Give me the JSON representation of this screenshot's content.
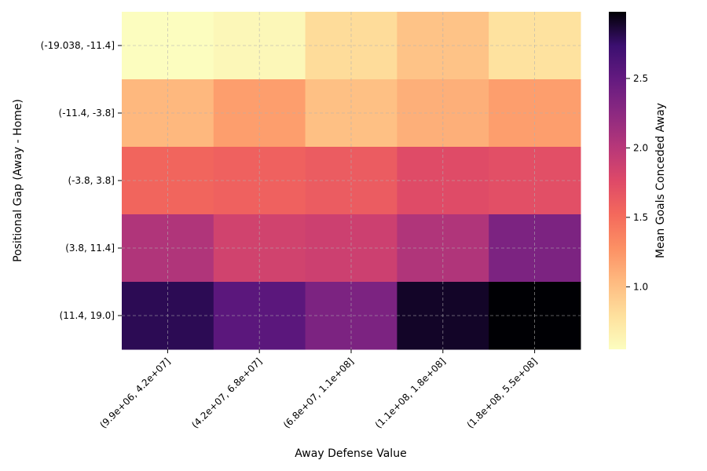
{
  "chart_data": {
    "type": "heatmap",
    "title": "",
    "xlabel": "Away Defense Value",
    "ylabel": "Positional Gap (Away - Home)",
    "x_categories": [
      "(9.9e+06, 4.2e+07]",
      "(4.2e+07, 6.8e+07]",
      "(6.8e+07, 1.1e+08]",
      "(1.1e+08, 1.8e+08]",
      "(1.8e+08, 5.5e+08]"
    ],
    "y_categories": [
      "(-19.038, -11.4]",
      "(-11.4, -3.8]",
      "(-3.8, 3.8]",
      "(3.8, 11.4]",
      "(11.4, 19.0]"
    ],
    "values": [
      [
        0.55,
        0.6,
        0.82,
        0.98,
        0.78
      ],
      [
        1.05,
        1.2,
        1.0,
        1.1,
        1.2
      ],
      [
        1.55,
        1.58,
        1.62,
        1.75,
        1.72
      ],
      [
        2.05,
        1.85,
        1.88,
        2.05,
        2.35
      ],
      [
        2.8,
        2.55,
        2.35,
        2.9,
        2.98
      ]
    ],
    "colorbar": {
      "label": "Mean Goals Conceded Away",
      "range": [
        0.55,
        2.98
      ],
      "ticks": [
        1.0,
        1.5,
        2.0,
        2.5
      ],
      "tick_labels": [
        "1.0",
        "1.5",
        "2.0",
        "2.5"
      ],
      "colormap": "magma_r"
    },
    "grid": true
  }
}
